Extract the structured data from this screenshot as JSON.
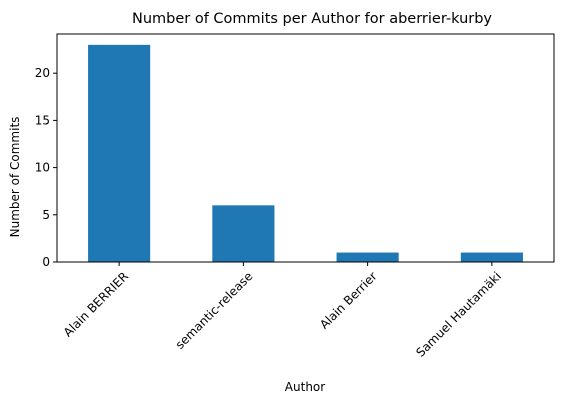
{
  "chart_data": {
    "type": "bar",
    "title": "Number of Commits per Author for aberrier-kurby",
    "xlabel": "Author",
    "ylabel": "Number of Commits",
    "categories": [
      "Alain BERRIER",
      "semantic-release",
      "Alain Berrier",
      "Samuel Hautamäki"
    ],
    "values": [
      23,
      6,
      1,
      1
    ],
    "ylim": [
      0,
      24.15
    ],
    "yticks": [
      0,
      5,
      10,
      15,
      20
    ],
    "grid": false,
    "legend": "none",
    "bar_color": "#1f77b4"
  }
}
